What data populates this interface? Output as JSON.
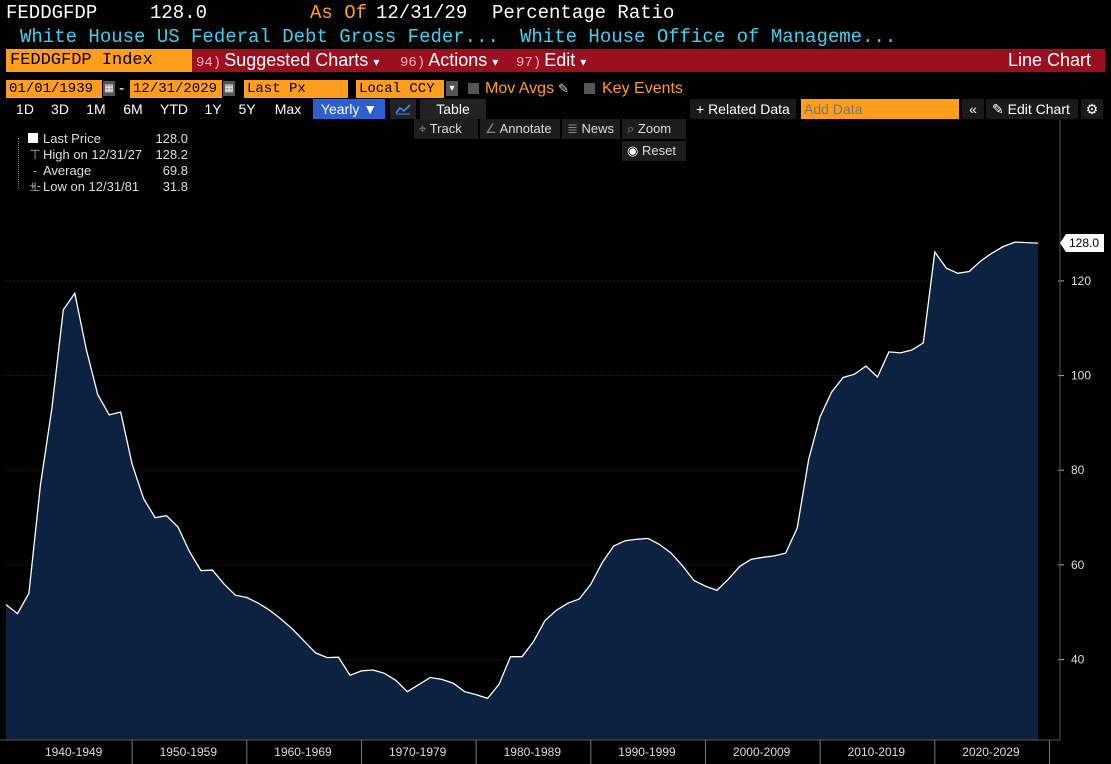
{
  "header": {
    "ticker": "FEDDGFDP",
    "price": "128.0",
    "as_of_label": "As Of",
    "as_of_date": "12/31/29",
    "measure": "Percentage Ratio",
    "desc_left": "White House US Federal Debt Gross Feder...",
    "desc_right": "White House Office of Manageme..."
  },
  "menu": {
    "security": "FEDDGFDP Index",
    "items": [
      {
        "num": "94)",
        "label": "Suggested Charts",
        "caret": "▾"
      },
      {
        "num": "96)",
        "label": "Actions",
        "caret": "▾"
      },
      {
        "num": "97)",
        "label": "Edit",
        "caret": "▾"
      }
    ],
    "chart_type": "Line Chart"
  },
  "controls": {
    "start_date": "01/01/1939",
    "dash": "-",
    "end_date": "12/31/2029",
    "field": "Last Px",
    "currency": "Local CCY",
    "mov_avgs": "Mov Avgs",
    "key_events": "Key Events"
  },
  "toolbar": {
    "ranges": [
      "1D",
      "3D",
      "1M",
      "6M",
      "YTD",
      "1Y",
      "5Y",
      "Max"
    ],
    "periodicity": "Yearly ▼",
    "table": "Table",
    "related_data": "+ Related Data",
    "add_data_placeholder": "Add Data",
    "edit_chart": "✎ Edit Chart"
  },
  "chart_tools": {
    "track": "Track",
    "annotate": "Annotate",
    "news": "News",
    "zoom": "Zoom",
    "reset": "Reset"
  },
  "legend": {
    "last_price_label": "Last Price",
    "last_price_value": "128.0",
    "high_label": "High on 12/31/27",
    "high_value": "128.2",
    "avg_label": "Average",
    "avg_value": "69.8",
    "low_label": "Low on 12/31/81",
    "low_value": "31.8"
  },
  "colors": {
    "area_fill": "#0c2240",
    "line": "#ffffff",
    "accent_orange": "#ff9d1e",
    "menu_red": "#9b0f1e",
    "cyan": "#3fd0f0"
  },
  "chart_data": {
    "type": "area",
    "title": "",
    "xlabel": "",
    "ylabel": "",
    "ylim": [
      23,
      154
    ],
    "yticks": [
      40,
      60,
      80,
      100,
      120
    ],
    "xlim": [
      1939,
      2029
    ],
    "x_tick_labels": [
      "1940-1949",
      "1950-1959",
      "1960-1969",
      "1970-1979",
      "1980-1989",
      "1990-1999",
      "2000-2009",
      "2010-2019",
      "2020-2029"
    ],
    "last_value_label": "128.0",
    "series": [
      {
        "x": [
          1939,
          1940,
          1941,
          1942,
          1943,
          1944,
          1945,
          1946,
          1947,
          1948,
          1949,
          1950,
          1951,
          1952,
          1953,
          1954,
          1955,
          1956,
          1957,
          1958,
          1959,
          1960,
          1961,
          1962,
          1963,
          1964,
          1965,
          1966,
          1967,
          1968,
          1969,
          1970,
          1971,
          1972,
          1973,
          1974,
          1975,
          1976,
          1977,
          1978,
          1979,
          1980,
          1981,
          1982,
          1983,
          1984,
          1985,
          1986,
          1987,
          1988,
          1989,
          1990,
          1991,
          1992,
          1993,
          1994,
          1995,
          1996,
          1997,
          1998,
          1999,
          2000,
          2001,
          2002,
          2003,
          2004,
          2005,
          2006,
          2007,
          2008,
          2009,
          2010,
          2011,
          2012,
          2013,
          2014,
          2015,
          2016,
          2017,
          2018,
          2019,
          2020,
          2021,
          2022,
          2023,
          2024,
          2025,
          2026,
          2027,
          2028,
          2029
        ],
        "y": [
          51.6,
          49.7,
          54.0,
          76.8,
          93.1,
          113.9,
          117.4,
          105.5,
          96.0,
          91.7,
          92.3,
          81.3,
          74.0,
          70.0,
          70.4,
          68.0,
          62.8,
          58.8,
          58.9,
          56.0,
          53.6,
          53.1,
          51.9,
          50.4,
          48.5,
          46.4,
          43.9,
          41.4,
          40.4,
          40.5,
          36.7,
          37.6,
          37.8,
          37.1,
          35.6,
          33.2,
          34.7,
          36.2,
          35.8,
          35.0,
          33.2,
          32.6,
          31.8,
          34.8,
          40.6,
          40.6,
          43.8,
          48.2,
          50.4,
          51.9,
          52.8,
          55.9,
          60.5,
          64.0,
          65.1,
          65.4,
          65.6,
          64.3,
          62.5,
          59.8,
          56.7,
          55.5,
          54.6,
          57.0,
          59.7,
          61.2,
          61.6,
          61.9,
          62.5,
          67.8,
          82.3,
          91.3,
          96.5,
          99.6,
          100.3,
          102.0,
          99.7,
          105.0,
          104.8,
          105.4,
          106.9,
          126.1,
          122.7,
          121.6,
          122.0,
          124.2,
          125.9,
          127.3,
          128.2,
          128.1,
          128.0
        ]
      }
    ]
  }
}
